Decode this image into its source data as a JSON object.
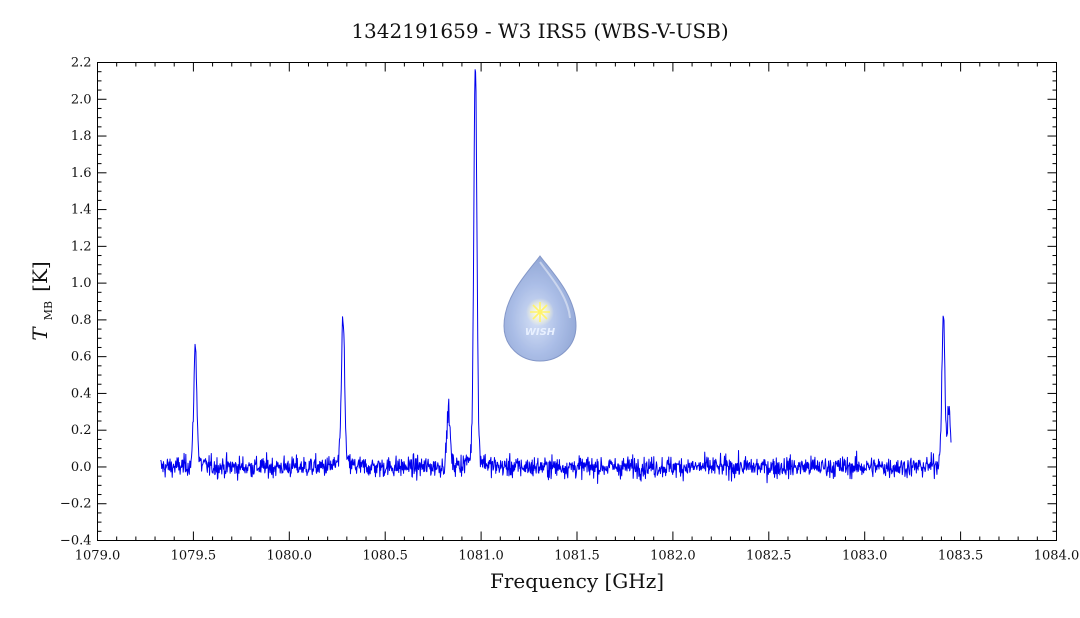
{
  "chart_data": {
    "type": "line",
    "title": "1342191659 - W3 IRS5 (WBS-V-USB)",
    "xlabel": "Frequency [GHz]",
    "ylabel_main": "T",
    "ylabel_sub": "MB",
    "ylabel_unit": "[K]",
    "xlim": [
      1079.0,
      1084.0
    ],
    "ylim": [
      -0.4,
      2.2
    ],
    "x_ticks": [
      1079.0,
      1079.5,
      1080.0,
      1080.5,
      1081.0,
      1081.5,
      1082.0,
      1082.5,
      1083.0,
      1083.5,
      1084.0
    ],
    "x_tick_labels": [
      "1079.0",
      "1079.5",
      "1080.0",
      "1080.5",
      "1081.0",
      "1081.5",
      "1082.0",
      "1082.5",
      "1083.0",
      "1083.5",
      "1084.0"
    ],
    "y_ticks": [
      -0.4,
      -0.2,
      0.0,
      0.2,
      0.4,
      0.6,
      0.8,
      1.0,
      1.2,
      1.4,
      1.6,
      1.8,
      2.0,
      2.2
    ],
    "y_tick_labels": [
      "−0.4",
      "−0.2",
      "0.0",
      "0.2",
      "0.4",
      "0.6",
      "0.8",
      "1.0",
      "1.2",
      "1.4",
      "1.6",
      "1.8",
      "2.0",
      "2.2"
    ],
    "grid": false,
    "series": [
      {
        "color": "#0000ee",
        "x_range": [
          1079.33,
          1083.45
        ],
        "baseline": 0.0,
        "noise_rms": 0.04,
        "peaks": [
          {
            "x": 1079.51,
            "y": 0.62
          },
          {
            "x": 1080.28,
            "y": 0.79
          },
          {
            "x": 1080.83,
            "y": 0.3
          },
          {
            "x": 1080.97,
            "y": 2.1
          },
          {
            "x": 1083.41,
            "y": 0.76
          },
          {
            "x": 1083.44,
            "y": 0.28
          }
        ]
      }
    ]
  },
  "watermark": {
    "label": "WISH",
    "icon": "water-drop-star-icon",
    "color": "#8da6d9"
  }
}
